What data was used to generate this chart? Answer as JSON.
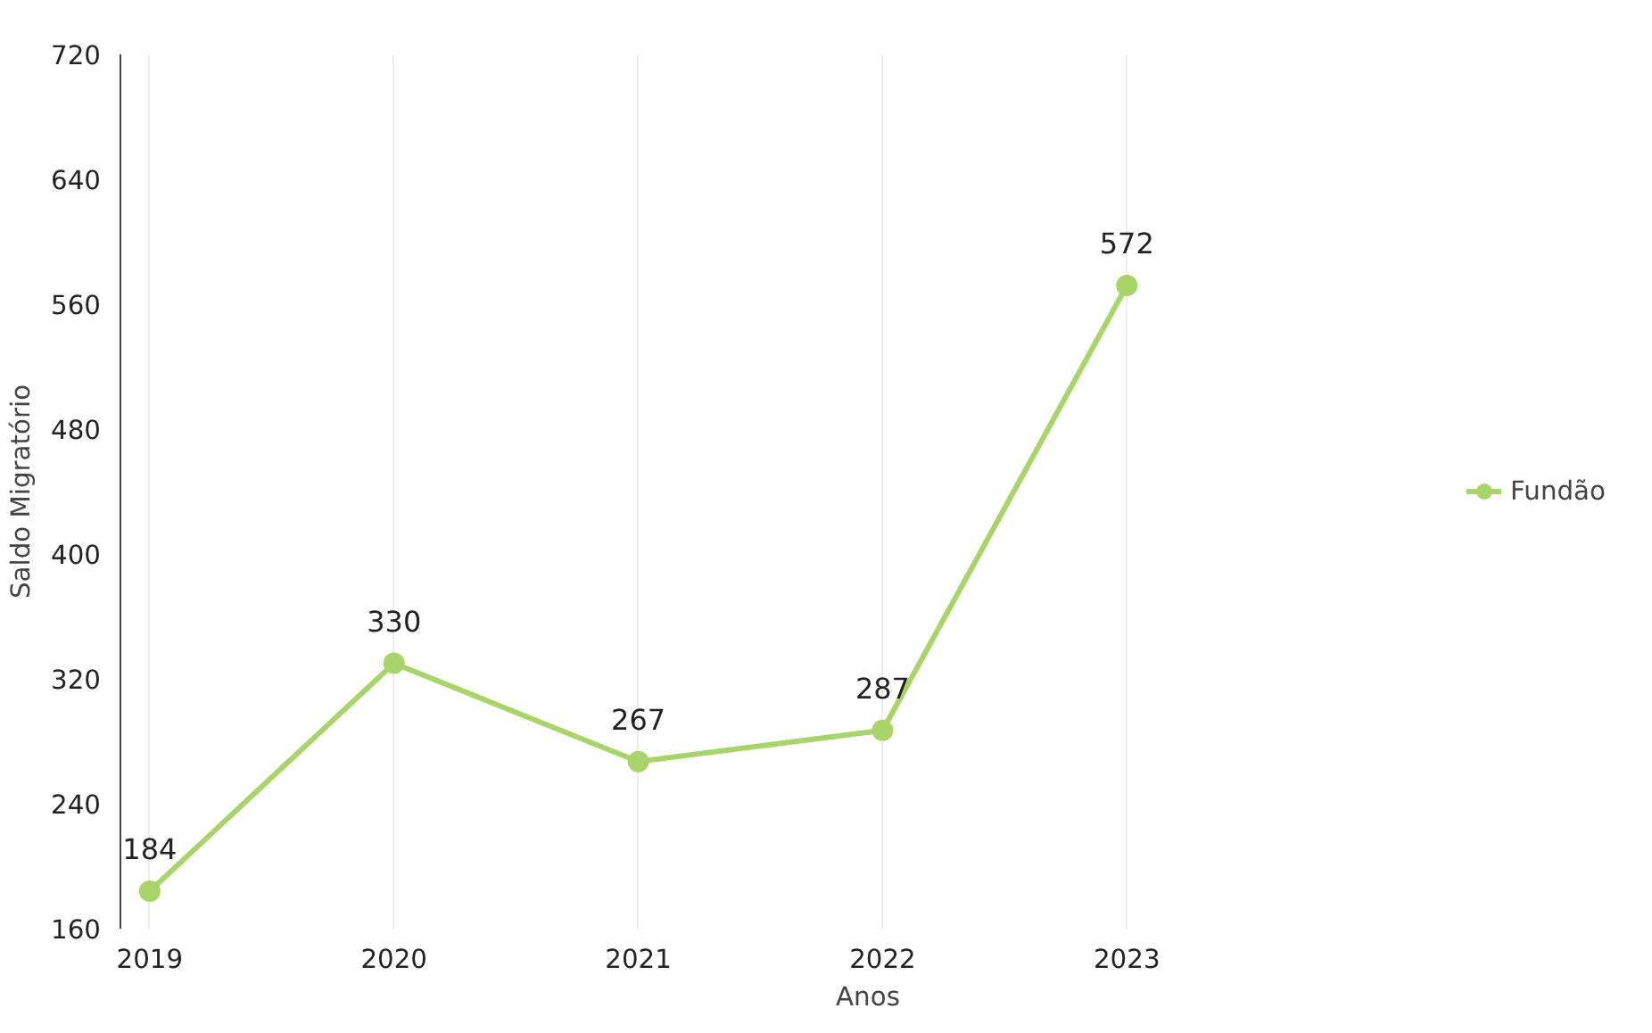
{
  "chart_data": {
    "type": "line",
    "xlabel": "Anos",
    "ylabel": "Saldo Migratório",
    "categories": [
      "2019",
      "2020",
      "2021",
      "2022",
      "2023"
    ],
    "series": [
      {
        "name": "Fundão",
        "color": "#a8d46a",
        "values": [
          184,
          330,
          267,
          287,
          572
        ]
      }
    ],
    "ylim": [
      160,
      720
    ],
    "yticks": [
      160,
      240,
      320,
      400,
      480,
      560,
      640,
      720
    ],
    "data_labels": true,
    "marker": "circle",
    "legend": "right",
    "grid": "x"
  }
}
